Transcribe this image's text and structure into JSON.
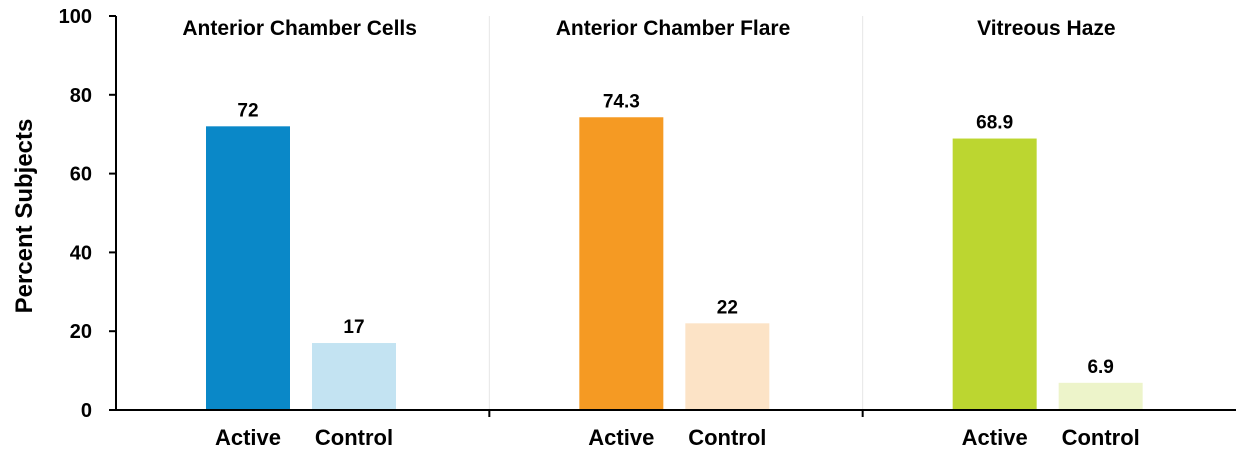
{
  "chart_data": {
    "type": "bar",
    "ylabel": "Percent Subjects",
    "ylim": [
      0,
      100
    ],
    "yticks": [
      "0",
      "20",
      "40",
      "60",
      "80",
      "100"
    ],
    "grid": false,
    "groups": [
      {
        "title": "Anterior Chamber Cells",
        "bars": [
          {
            "category": "Active",
            "value": 72,
            "label": "72",
            "color": "#0a88c8"
          },
          {
            "category": "Control",
            "value": 17,
            "label": "17",
            "color": "#c3e3f2"
          }
        ]
      },
      {
        "title": "Anterior Chamber Flare",
        "bars": [
          {
            "category": "Active",
            "value": 74.3,
            "label": "74.3",
            "color": "#f59a23"
          },
          {
            "category": "Control",
            "value": 22,
            "label": "22",
            "color": "#fce3c6"
          }
        ]
      },
      {
        "title": "Vitreous Haze",
        "bars": [
          {
            "category": "Active",
            "value": 68.9,
            "label": "68.9",
            "color": "#bcd630"
          },
          {
            "category": "Control",
            "value": 6.9,
            "label": "6.9",
            "color": "#edf4ca"
          }
        ]
      }
    ]
  }
}
